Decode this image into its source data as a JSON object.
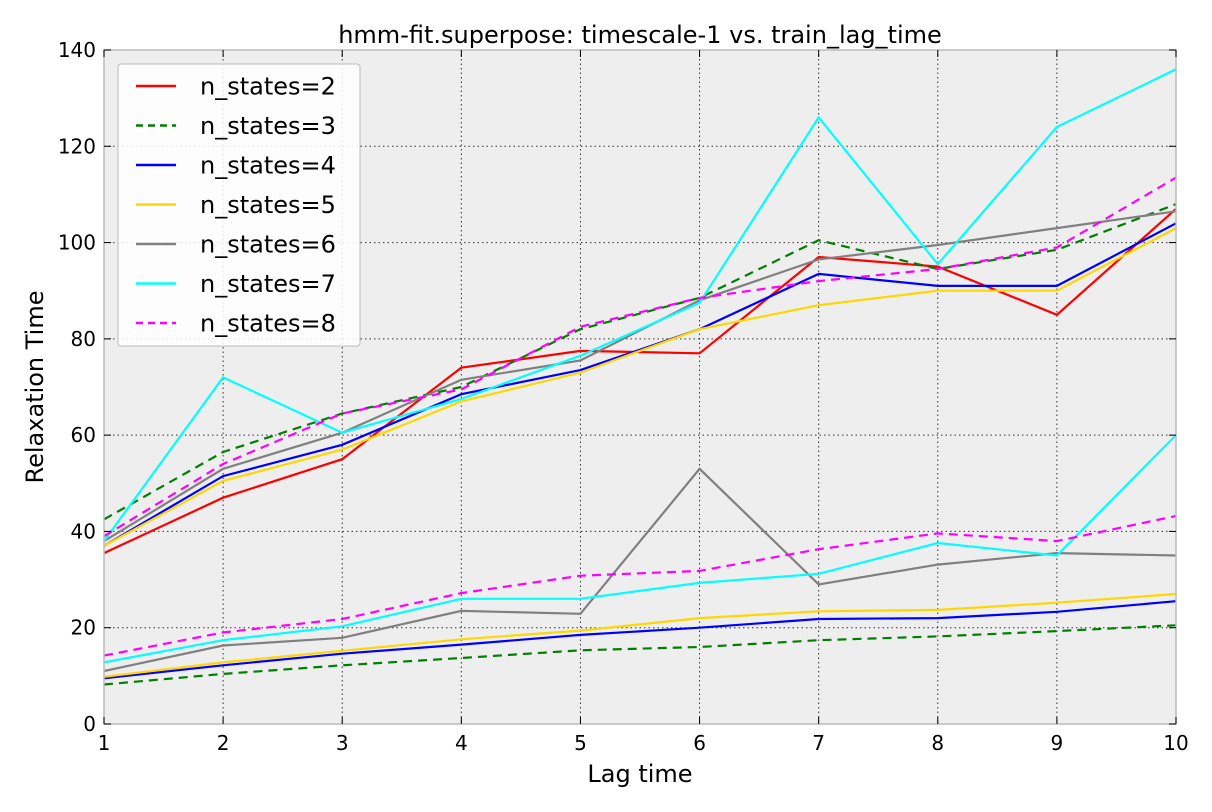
{
  "chart_data": {
    "type": "line",
    "title": "hmm-fit.superpose: timescale-1 vs. train_lag_time",
    "xlabel": "Lag time",
    "ylabel": "Relaxation Time",
    "xlim": [
      1,
      10
    ],
    "ylim": [
      0,
      140
    ],
    "xticks": [
      1,
      2,
      3,
      4,
      5,
      6,
      7,
      8,
      9,
      10
    ],
    "yticks": [
      0,
      20,
      40,
      60,
      80,
      100,
      120,
      140
    ],
    "grid": true,
    "legend_position": "top-left",
    "x": [
      1,
      2,
      3,
      4,
      5,
      6,
      7,
      8,
      9,
      10
    ],
    "series": [
      {
        "name": "n_states=2",
        "color": "#ff0000",
        "dash": "solid",
        "values": [
          35.5,
          47,
          55,
          74,
          77.5,
          77,
          97,
          95,
          85,
          107
        ]
      },
      {
        "name": "n_states=3",
        "color": "#008000",
        "dash": "dashed",
        "values": [
          42.5,
          56.5,
          64.5,
          70,
          82,
          88.5,
          100.5,
          94.5,
          98.5,
          108
        ]
      },
      {
        "name": "n_states=4",
        "color": "#0000ff",
        "dash": "solid",
        "values": [
          37,
          51.5,
          58,
          68.5,
          73.5,
          82,
          93.5,
          91,
          91,
          104
        ]
      },
      {
        "name": "n_states=5",
        "color": "#ffd700",
        "dash": "solid",
        "values": [
          37,
          50.5,
          57,
          67,
          73,
          82,
          87,
          90,
          90,
          103
        ]
      },
      {
        "name": "n_states=6",
        "color": "#808080",
        "dash": "solid",
        "values": [
          38,
          53,
          60.5,
          71.5,
          75.5,
          88,
          96.5,
          99.5,
          103,
          106.5
        ]
      },
      {
        "name": "n_states=7",
        "color": "#00ffff",
        "dash": "solid",
        "values": [
          38,
          72,
          60.5,
          67.5,
          76.5,
          87.5,
          126,
          95.5,
          124,
          136
        ]
      },
      {
        "name": "n_states=8",
        "color": "#ff00ff",
        "dash": "dashed",
        "values": [
          39,
          54,
          64.5,
          69.5,
          82.5,
          88.5,
          92,
          94.5,
          99,
          113.5
        ]
      }
    ],
    "lower_series": [
      {
        "color": "#008000",
        "dash": "dashed",
        "values": [
          8.2,
          10.4,
          12.2,
          13.7,
          15.3,
          16,
          17.4,
          18.2,
          19.3,
          20.5
        ]
      },
      {
        "color": "#0000ff",
        "dash": "solid",
        "values": [
          9.5,
          12.2,
          14.6,
          16.5,
          18.5,
          20,
          21.8,
          22,
          23.3,
          25.5
        ]
      },
      {
        "color": "#ffd700",
        "dash": "solid",
        "values": [
          9.8,
          12.8,
          15.2,
          17.6,
          19.4,
          22,
          23.4,
          23.7,
          25.2,
          27
        ]
      },
      {
        "color": "#808080",
        "dash": "solid",
        "values": [
          11,
          16.3,
          17.9,
          23.5,
          22.9,
          53,
          29,
          33.1,
          35.5,
          35
        ]
      },
      {
        "color": "#00ffff",
        "dash": "solid",
        "values": [
          12.8,
          17.4,
          20.3,
          26,
          26,
          29.3,
          31.2,
          37.6,
          35,
          60
        ]
      },
      {
        "color": "#ff00ff",
        "dash": "dashed",
        "values": [
          14.2,
          19,
          21.8,
          27.2,
          30.8,
          31.8,
          36.3,
          39.6,
          38,
          43.2
        ]
      }
    ]
  }
}
